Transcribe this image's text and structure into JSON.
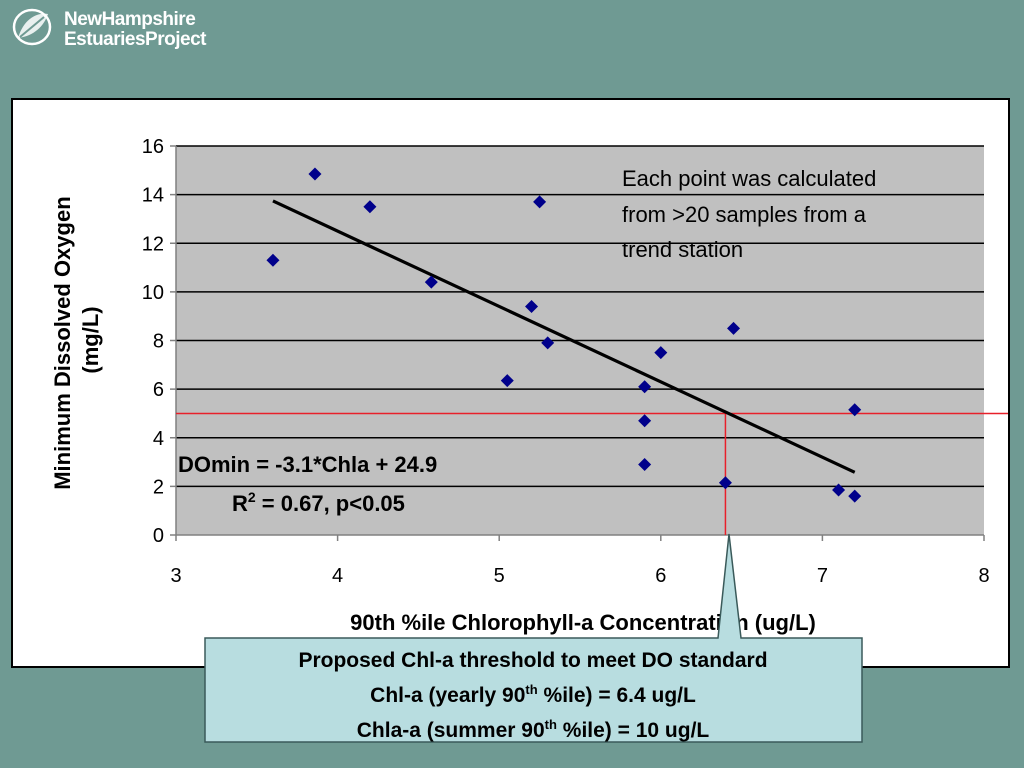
{
  "header": {
    "logo_line1": "NewHampshire",
    "logo_line2": "EstuariesProject",
    "logo_icon": "leaf-icon"
  },
  "colors": {
    "background": "#6f9a93",
    "plot_bg": "#c0c0c0",
    "marker": "#00008b",
    "threshold_line": "#e8202a",
    "callout_bg": "#b8dde0"
  },
  "chart_data": {
    "type": "scatter",
    "title": "",
    "xlabel": "90th %ile Chlorophyll-a Concentration (ug/L)",
    "ylabel_line1": "Minimum Dissolved Oxygen",
    "ylabel_line2": "(mg/L)",
    "xlim": [
      3,
      8
    ],
    "ylim": [
      0,
      16
    ],
    "xticks": [
      3,
      4,
      5,
      6,
      7,
      8
    ],
    "yticks": [
      0,
      2,
      4,
      6,
      8,
      10,
      12,
      14,
      16
    ],
    "grid": true,
    "series": [
      {
        "points": [
          {
            "x": 3.6,
            "y": 11.3
          },
          {
            "x": 3.86,
            "y": 14.85
          },
          {
            "x": 4.2,
            "y": 13.5
          },
          {
            "x": 4.58,
            "y": 10.4
          },
          {
            "x": 5.05,
            "y": 6.35
          },
          {
            "x": 5.2,
            "y": 9.4
          },
          {
            "x": 5.25,
            "y": 13.7
          },
          {
            "x": 5.3,
            "y": 7.9
          },
          {
            "x": 5.9,
            "y": 6.1
          },
          {
            "x": 5.9,
            "y": 4.7
          },
          {
            "x": 5.9,
            "y": 2.9
          },
          {
            "x": 6.0,
            "y": 7.5
          },
          {
            "x": 6.4,
            "y": 2.15
          },
          {
            "x": 6.45,
            "y": 8.5
          },
          {
            "x": 7.1,
            "y": 1.85
          },
          {
            "x": 7.2,
            "y": 5.15
          },
          {
            "x": 7.2,
            "y": 1.6
          }
        ]
      }
    ],
    "trendline": {
      "slope": -3.1,
      "intercept": 24.9,
      "x_start": 3.6,
      "x_end": 7.2
    },
    "threshold": {
      "y": 5.0,
      "x": 6.4
    },
    "annotation": {
      "line1": "Each point was calculated",
      "line2": "from >20 samples from a",
      "line3": "trend station"
    },
    "equation": {
      "line1": "DOmin = -3.1*Chla + 24.9",
      "r_prefix": "R",
      "r_sup": "2",
      "r_rest": " = 0.67, p<0.05"
    }
  },
  "callout": {
    "line1": "Proposed Chl-a threshold to meet DO standard",
    "line2_a": "Chl-a (yearly 90",
    "line2_sup": "th",
    "line2_b": " %ile) = 6.4 ug/L",
    "line3_a": "Chla-a (summer 90",
    "line3_sup": "th",
    "line3_b": " %ile) = 10 ug/L"
  }
}
